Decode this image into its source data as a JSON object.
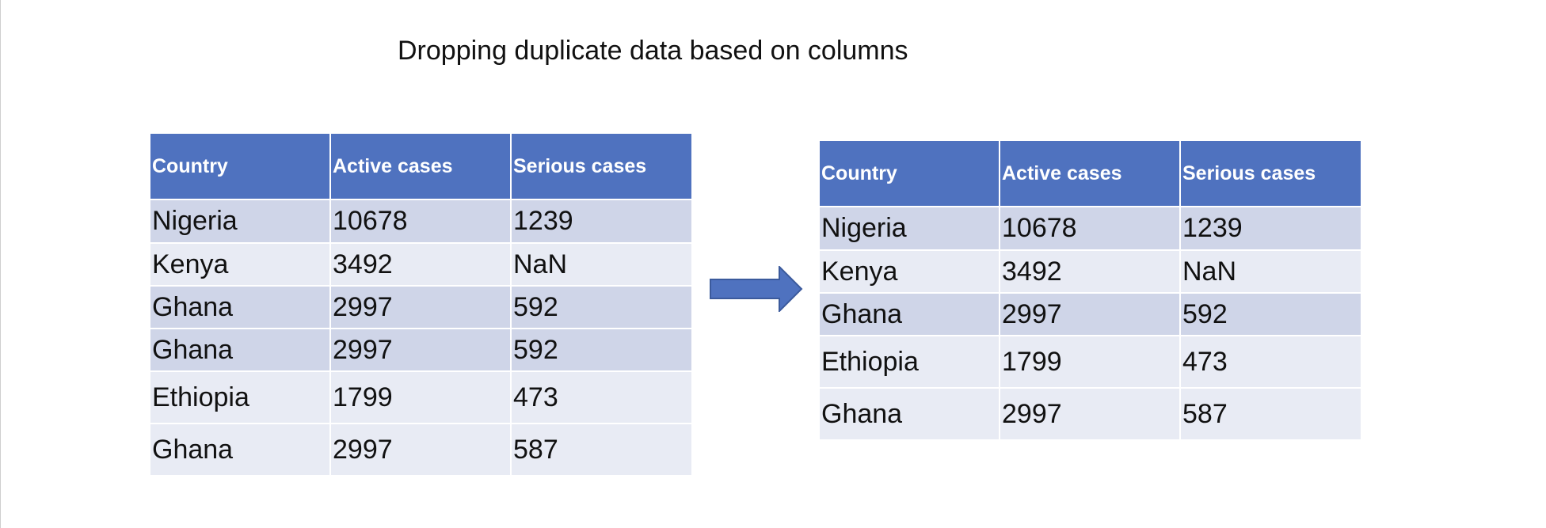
{
  "title": "Dropping duplicate data based on columns",
  "colors": {
    "header_bg": "#4f72bf",
    "row_dark": "#cfd5e8",
    "row_light": "#e8ebf4",
    "arrow": "#4f72bf"
  },
  "table_before": {
    "headers": [
      "Country",
      "Active cases",
      "Serious cases"
    ],
    "rows": [
      [
        "Nigeria",
        "10678",
        "1239"
      ],
      [
        "Kenya",
        "3492",
        "NaN"
      ],
      [
        "Ghana",
        "2997",
        "592"
      ],
      [
        "Ghana",
        "2997",
        "592"
      ],
      [
        "Ethiopia",
        "1799",
        "473"
      ],
      [
        "Ghana",
        "2997",
        "587"
      ]
    ]
  },
  "table_after": {
    "headers": [
      "Country",
      "Active cases",
      "Serious cases"
    ],
    "rows": [
      [
        "Nigeria",
        "10678",
        "1239"
      ],
      [
        "Kenya",
        "3492",
        "NaN"
      ],
      [
        "Ghana",
        "2997",
        "592"
      ],
      [
        "Ethiopia",
        "1799",
        "473"
      ],
      [
        "Ghana",
        "2997",
        "587"
      ]
    ]
  },
  "arrow_icon": "right-arrow-icon"
}
